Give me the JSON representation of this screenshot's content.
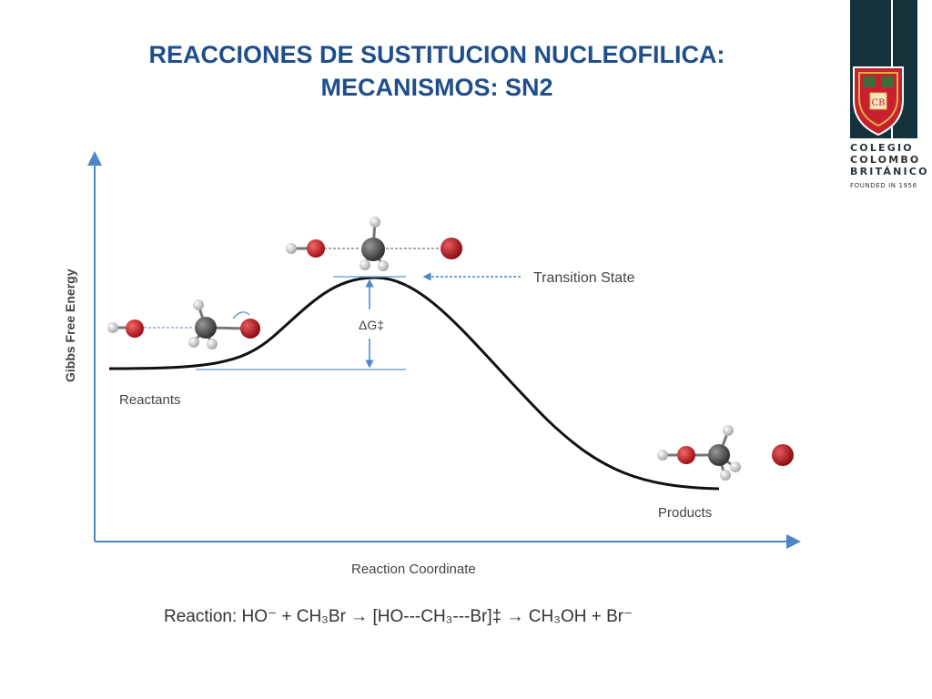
{
  "title": {
    "line1": "REACCIONES DE SUSTITUCION NUCLEOFILICA:",
    "line2": "MECANISMOS: SN2"
  },
  "brand": {
    "name_line1": "COLEGIO",
    "name_line2": "COLOMBO",
    "name_line3": "BRITÁNICO",
    "founded": "FOUNDED IN 1956",
    "colors": {
      "bar": "#14323b",
      "crest_red": "#c8202c",
      "crest_gold": "#d9b24a"
    }
  },
  "diagram": {
    "y_axis_label": "Gibbs Free Energy",
    "x_axis_label": "Reaction Coordinate",
    "reactants_label": "Reactants",
    "products_label": "Products",
    "transition_state_label": "Transition State",
    "activation_energy_label": "ΔG‡",
    "reaction_equation": "Reaction:  HO⁻ + CH₃Br → [HO---CH₃---Br]‡ → CH₃OH + Br⁻",
    "colors": {
      "oxygen": "#c0161c",
      "carbon": "#555555",
      "hydrogen": "#e8e8e8",
      "bromine": "#b3141b",
      "guide": "#4a86c8"
    }
  }
}
